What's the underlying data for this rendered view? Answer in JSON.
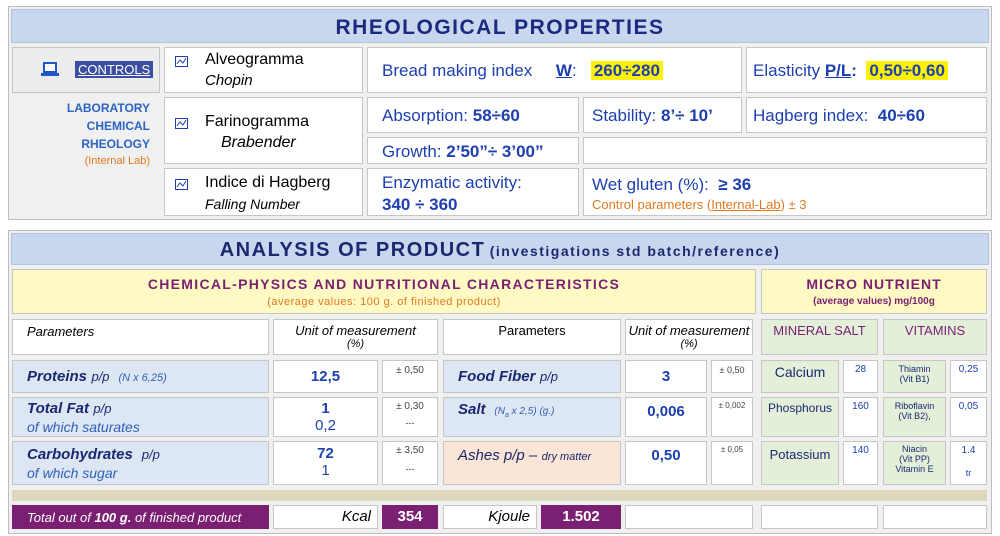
{
  "rheology": {
    "title": "RHEOLOGICAL PROPERTIES",
    "controls": "CONTROLS",
    "lab": {
      "line1": "LABORATORY",
      "line2": "CHEMICAL",
      "line3": "RHEOLOGY",
      "note": "(Internal Lab)"
    },
    "tests": [
      {
        "name": "Alveogramma",
        "method": "Chopin"
      },
      {
        "name": "Farinogramma",
        "method": "Brabender"
      },
      {
        "name": "Indice di Hagberg",
        "method": "Falling Number"
      }
    ],
    "bread_making": {
      "label": "Bread making index",
      "key": "W",
      "colon": ":",
      "value": "260÷280"
    },
    "elasticity": {
      "label": "Elasticity",
      "key": "P/L",
      "colon": ":",
      "value": "0,50÷0,60"
    },
    "absorption": {
      "label": "Absorption:",
      "value": "58÷60"
    },
    "stability": {
      "label": "Stability:",
      "value": "8’÷ 10’"
    },
    "hagberg": {
      "label": "Hagberg index:",
      "value": "40÷60"
    },
    "growth": {
      "label": "Growth:",
      "value": "2’50”÷ 3’00”"
    },
    "enzymatic": {
      "label": "Enzymatic activity:",
      "value": "340 ÷ 360"
    },
    "wet_gluten": {
      "label": "Wet gluten (%):",
      "value": "≥ 36",
      "note_prefix": "Control parameters (",
      "note_link": "Internal-Lab",
      "note_suffix": ") ± 3"
    }
  },
  "analysis": {
    "title": "ANALYSIS OF PRODUCT",
    "subtitle": "(investigations std batch/reference)",
    "chemical": {
      "title": "CHEMICAL-PHYSICS AND NUTRITIONAL CHARACTERISTICS",
      "subtitle": "(average values: 100 g. of finished product)"
    },
    "micro": {
      "title": "MICRO NUTRIENT",
      "subtitle": "(average values) mg/100g"
    },
    "headers": {
      "parameters_1": "Parameters",
      "unit_1": "Unit of measurement",
      "unit_1_pct": "(%)",
      "parameters_2": "Parameters",
      "unit_2": "Unit of measurement",
      "unit_2_pct": "(%)",
      "mineral_salt": "MINERAL SALT",
      "vitamins": "VITAMINS"
    },
    "left_rows": [
      {
        "name": "Proteins",
        "basis": "p/p",
        "note": "(N x 6,25)",
        "value": "12,5",
        "tolerance": "± 0,50"
      },
      {
        "name": "Total Fat",
        "basis": "p/p",
        "sub_name": "of which saturates",
        "value": "1",
        "sub_value": "0,2",
        "tolerance": "± 0,30",
        "sub_tolerance": "---"
      },
      {
        "name": "Carbohydrates",
        "basis": "p/p",
        "sub_name": "of which sugar",
        "value": "72",
        "sub_value": "1",
        "tolerance": "± 3,50",
        "sub_tolerance": "---"
      }
    ],
    "right_rows": [
      {
        "name": "Food Fiber",
        "basis": "p/p",
        "value": "3",
        "tolerance": "± 0,50"
      },
      {
        "name": "Salt",
        "note_a": "(N",
        "note_sub": "a",
        "note_b": " x 2,5) (g.)",
        "value": "0,006",
        "tolerance": "± 0,002"
      },
      {
        "name": "Ashes p/p –",
        "note": "dry matter",
        "value": "0,50",
        "tolerance": "± 0,05"
      }
    ],
    "minerals": [
      {
        "name": "Calcium",
        "value": "28"
      },
      {
        "name": "Phosphorus",
        "value": "160"
      },
      {
        "name": "Potassium",
        "value": "140"
      }
    ],
    "vitamins": [
      {
        "name": "Thiamin",
        "code": "(Vit B1)",
        "value": "0,25"
      },
      {
        "name": "Riboflavin",
        "code": "(Vit B2),",
        "value": "0,05"
      },
      {
        "name": "Niacin",
        "code": "(Vit PP)",
        "value": "1.4"
      },
      {
        "name": "Vitamin E",
        "value": "tr"
      }
    ],
    "total": {
      "prefix": "Total out of ",
      "amount": "100 g.",
      "suffix": " of finished product",
      "kcal_label": "Kcal",
      "kcal": "354",
      "kjoule_label": "Kjoule",
      "kjoule": "1.502"
    }
  }
}
